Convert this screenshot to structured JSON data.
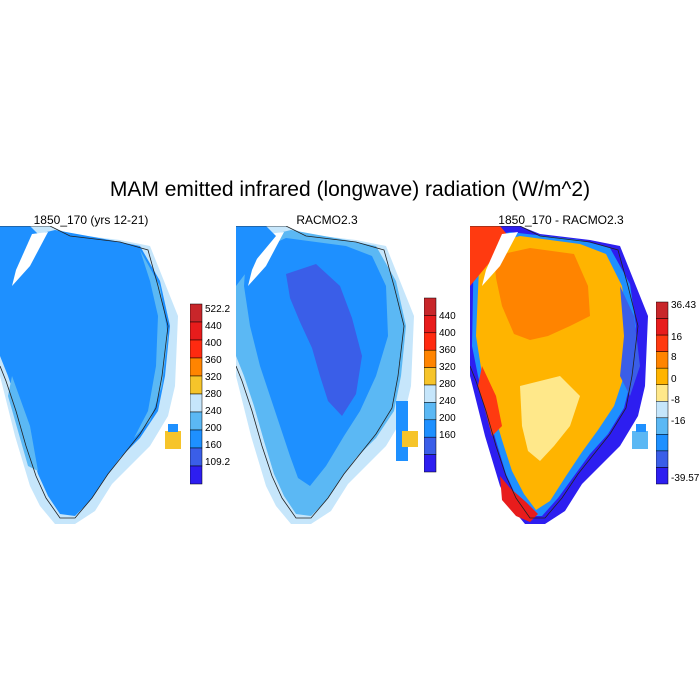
{
  "title": "MAM emitted infrared (longwave) radiation (W/m^2)",
  "panels": [
    {
      "title": "1850_170 (yrs 12-21)",
      "colorbar": {
        "labels": [
          "522.2",
          "440",
          "400",
          "360",
          "320",
          "280",
          "240",
          "200",
          "160",
          "109.2"
        ],
        "colors": [
          "#c8262a",
          "#e81c1c",
          "#ff2a10",
          "#ff8400",
          "#f6c42a",
          "#c6e6fb",
          "#5bb8f4",
          "#1e90ff",
          "#3a5ee8",
          "#2d1ef0"
        ]
      }
    },
    {
      "title": "RACMO2.3",
      "colorbar": {
        "labels": [
          "440",
          "400",
          "360",
          "320",
          "280",
          "240",
          "200",
          "160"
        ],
        "colors": [
          "#c8262a",
          "#e81c1c",
          "#ff2a10",
          "#ff8400",
          "#f6c42a",
          "#c6e6fb",
          "#5bb8f4",
          "#1e90ff",
          "#3a5ee8",
          "#2d1ef0"
        ]
      }
    },
    {
      "title": "1850_170 - RACMO2.3",
      "colorbar": {
        "labels": [
          "36.43",
          "16",
          "8",
          "0",
          "-8",
          "-16",
          "-39.57"
        ],
        "colors": [
          "#c8262a",
          "#e81c1c",
          "#ff3a10",
          "#ff8400",
          "#ffb400",
          "#ffe88a",
          "#c6e6fb",
          "#5bb8f4",
          "#1e90ff",
          "#3a5ee8",
          "#2d1ef0"
        ]
      }
    }
  ],
  "colors": {
    "ocean": "#ffffff",
    "panel1_fill": "#1e90ff",
    "panel1_edge": "#5bb8f4",
    "panel2_interior": "#3a5ee8",
    "panel2_fill": "#1e90ff",
    "panel3_fill": "#ffb400",
    "panel3_interior": "#ff8400",
    "panel3_yellow": "#ffe88a"
  }
}
